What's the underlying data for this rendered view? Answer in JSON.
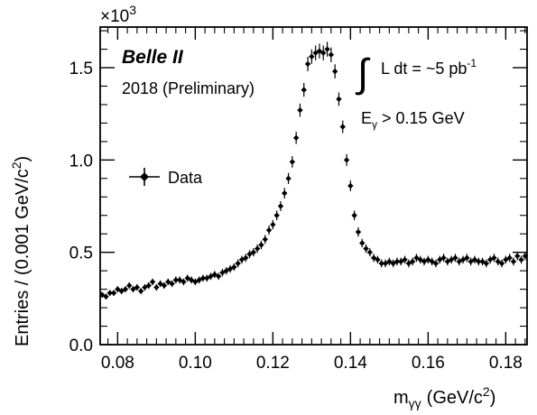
{
  "chart_data": {
    "type": "scatter",
    "title": "",
    "xlabel": "m",
    "xlabel_sub": "γγ",
    "xlabel_unit": "(GeV/c",
    "xlabel_unit_sup": "2",
    "xlabel_unit_end": ")",
    "ylabel_main": "Entries / (0.001 GeV/c",
    "ylabel_sup": "2",
    "ylabel_end": ")",
    "y_multiplier": "×10",
    "y_multiplier_exp": "3",
    "xlim": [
      0.0755,
      0.1855
    ],
    "ylim": [
      0.0,
      1.72
    ],
    "x_ticks": [
      0.08,
      0.1,
      0.12,
      0.14,
      0.16,
      0.18
    ],
    "x_tick_labels": [
      "0.08",
      "0.10",
      "0.12",
      "0.14",
      "0.16",
      "0.18"
    ],
    "y_ticks": [
      0.0,
      0.5,
      1.0,
      1.5
    ],
    "y_tick_labels": [
      "0.0",
      "0.5",
      "1.0",
      "1.5"
    ],
    "grid": false,
    "legend_position": "left",
    "experiment": "Belle II",
    "run_label": "2018 (Preliminary)",
    "lumi_prefix": "L dt = ~5 pb",
    "lumi_exp": "-1",
    "energy_cut_prefix": "E",
    "energy_cut_sub": "γ",
    "energy_cut_suffix": " > 0.15 GeV",
    "series": [
      {
        "name": "Data",
        "marker": "diamond",
        "color": "#000000",
        "x": [
          0.076,
          0.077,
          0.078,
          0.079,
          0.08,
          0.081,
          0.082,
          0.083,
          0.084,
          0.085,
          0.086,
          0.087,
          0.088,
          0.089,
          0.09,
          0.091,
          0.092,
          0.093,
          0.094,
          0.095,
          0.096,
          0.097,
          0.098,
          0.099,
          0.1,
          0.101,
          0.102,
          0.103,
          0.104,
          0.105,
          0.106,
          0.107,
          0.108,
          0.109,
          0.11,
          0.111,
          0.112,
          0.113,
          0.114,
          0.115,
          0.116,
          0.117,
          0.118,
          0.119,
          0.12,
          0.121,
          0.122,
          0.123,
          0.124,
          0.125,
          0.126,
          0.127,
          0.128,
          0.129,
          0.13,
          0.131,
          0.132,
          0.133,
          0.134,
          0.135,
          0.136,
          0.137,
          0.138,
          0.139,
          0.14,
          0.141,
          0.142,
          0.143,
          0.144,
          0.145,
          0.146,
          0.147,
          0.148,
          0.149,
          0.15,
          0.151,
          0.152,
          0.153,
          0.154,
          0.155,
          0.156,
          0.157,
          0.158,
          0.159,
          0.16,
          0.161,
          0.162,
          0.163,
          0.164,
          0.165,
          0.166,
          0.167,
          0.168,
          0.169,
          0.17,
          0.171,
          0.172,
          0.173,
          0.174,
          0.175,
          0.176,
          0.177,
          0.178,
          0.179,
          0.18,
          0.181,
          0.182,
          0.183,
          0.184,
          0.185
        ],
        "y": [
          0.27,
          0.26,
          0.28,
          0.28,
          0.3,
          0.29,
          0.3,
          0.32,
          0.3,
          0.31,
          0.29,
          0.31,
          0.32,
          0.34,
          0.31,
          0.33,
          0.32,
          0.34,
          0.33,
          0.35,
          0.35,
          0.34,
          0.36,
          0.35,
          0.34,
          0.35,
          0.36,
          0.36,
          0.37,
          0.38,
          0.37,
          0.39,
          0.4,
          0.41,
          0.42,
          0.44,
          0.46,
          0.47,
          0.49,
          0.5,
          0.52,
          0.54,
          0.57,
          0.62,
          0.65,
          0.7,
          0.75,
          0.82,
          0.9,
          0.99,
          1.12,
          1.27,
          1.38,
          1.52,
          1.56,
          1.58,
          1.59,
          1.58,
          1.6,
          1.57,
          1.48,
          1.33,
          1.18,
          1.0,
          0.86,
          0.7,
          0.61,
          0.55,
          0.52,
          0.5,
          0.47,
          0.46,
          0.44,
          0.44,
          0.45,
          0.44,
          0.45,
          0.45,
          0.46,
          0.44,
          0.45,
          0.47,
          0.46,
          0.45,
          0.46,
          0.45,
          0.44,
          0.46,
          0.47,
          0.45,
          0.46,
          0.47,
          0.45,
          0.46,
          0.47,
          0.45,
          0.46,
          0.45,
          0.45,
          0.44,
          0.46,
          0.47,
          0.45,
          0.44,
          0.46,
          0.47,
          0.45,
          0.48,
          0.46,
          0.48
        ],
        "yerr": [
          0.016,
          0.016,
          0.016,
          0.016,
          0.017,
          0.017,
          0.017,
          0.018,
          0.017,
          0.018,
          0.017,
          0.018,
          0.018,
          0.018,
          0.018,
          0.018,
          0.018,
          0.018,
          0.018,
          0.019,
          0.019,
          0.018,
          0.019,
          0.019,
          0.018,
          0.019,
          0.019,
          0.019,
          0.019,
          0.019,
          0.019,
          0.02,
          0.02,
          0.02,
          0.02,
          0.021,
          0.021,
          0.022,
          0.022,
          0.022,
          0.023,
          0.023,
          0.024,
          0.025,
          0.025,
          0.026,
          0.027,
          0.029,
          0.03,
          0.031,
          0.033,
          0.036,
          0.037,
          0.039,
          0.039,
          0.04,
          0.04,
          0.04,
          0.04,
          0.04,
          0.038,
          0.036,
          0.034,
          0.032,
          0.029,
          0.026,
          0.025,
          0.023,
          0.023,
          0.022,
          0.022,
          0.021,
          0.021,
          0.021,
          0.021,
          0.021,
          0.021,
          0.021,
          0.021,
          0.021,
          0.021,
          0.022,
          0.021,
          0.021,
          0.021,
          0.021,
          0.021,
          0.021,
          0.022,
          0.021,
          0.021,
          0.022,
          0.021,
          0.021,
          0.022,
          0.021,
          0.021,
          0.021,
          0.021,
          0.021,
          0.021,
          0.022,
          0.021,
          0.021,
          0.021,
          0.022,
          0.021,
          0.022,
          0.021,
          0.022
        ]
      }
    ]
  }
}
